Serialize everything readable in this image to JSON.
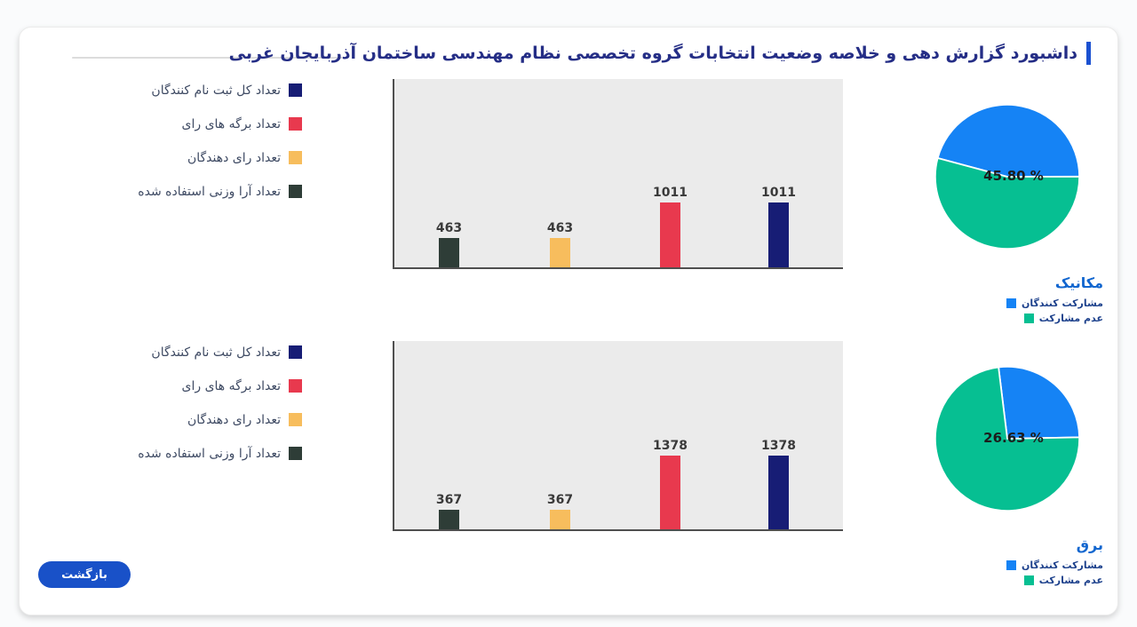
{
  "header": {
    "title": "داشبورد گزارش دهی و خلاصه وضعیت انتخابات گروه تخصصی نظام مهندسی ساختمان آذربایجان غربی",
    "accent_color": "#1b51d1"
  },
  "back_button": {
    "label": "بازگشت",
    "color": "#1951c8"
  },
  "rows": [
    {
      "legend": [
        {
          "label": "تعداد کل ثبت نام کنندگان",
          "color": "#171d75"
        },
        {
          "label": "تعداد برگه های رای",
          "color": "#e8394e"
        },
        {
          "label": "تعداد رای دهندگان",
          "color": "#f7bd5d"
        },
        {
          "label": "تعداد آرا وزنی استفاده شده",
          "color": "#2e3d37"
        }
      ],
      "bar_chart": {
        "ymax": 2950,
        "bars": [
          {
            "series": "تعداد آرا وزنی استفاده شده",
            "value": 463,
            "color": "#2e3d37"
          },
          {
            "series": "تعداد رای دهندگان",
            "value": 463,
            "color": "#f7bd5d"
          },
          {
            "series": "تعداد برگه های رای",
            "value": 1011,
            "color": "#e8394e"
          },
          {
            "series": "تعداد کل ثبت نام کنندگان",
            "value": 1011,
            "color": "#171d75"
          }
        ]
      },
      "pie": {
        "title": "مکانیک",
        "percent": 45.8,
        "percent_label": "45.80 %",
        "start_deg": 285,
        "slices": [
          {
            "label": "مشارکت کنندگان",
            "color": "#1583f5"
          },
          {
            "label": "عدم مشارکت",
            "color": "#06bf92"
          }
        ]
      }
    },
    {
      "legend": [
        {
          "label": "تعداد کل ثبت نام کنندگان",
          "color": "#171d75"
        },
        {
          "label": "تعداد برگه های رای",
          "color": "#e8394e"
        },
        {
          "label": "تعداد رای دهندگان",
          "color": "#f7bd5d"
        },
        {
          "label": "تعداد آرا وزنی استفاده شده",
          "color": "#2e3d37"
        }
      ],
      "bar_chart": {
        "ymax": 3530,
        "bars": [
          {
            "series": "تعداد آرا وزنی استفاده شده",
            "value": 367,
            "color": "#2e3d37"
          },
          {
            "series": "تعداد رای دهندگان",
            "value": 367,
            "color": "#f7bd5d"
          },
          {
            "series": "تعداد برگه های رای",
            "value": 1378,
            "color": "#e8394e"
          },
          {
            "series": "تعداد کل ثبت نام کنندگان",
            "value": 1378,
            "color": "#171d75"
          }
        ]
      },
      "pie": {
        "title": "برق",
        "percent": 26.63,
        "percent_label": "26.63 %",
        "start_deg": -7,
        "slices": [
          {
            "label": "مشارکت کنندگان",
            "color": "#1583f5"
          },
          {
            "label": "عدم مشارکت",
            "color": "#06bf92"
          }
        ]
      }
    }
  ],
  "chart_data": [
    {
      "type": "bar",
      "group": "مکانیک",
      "categories": [
        "تعداد آرا وزنی استفاده شده",
        "تعداد رای دهندگان",
        "تعداد برگه های رای",
        "تعداد کل ثبت نام کنندگان"
      ],
      "values": [
        463,
        463,
        1011,
        1011
      ],
      "colors": [
        "#2e3d37",
        "#f7bd5d",
        "#e8394e",
        "#171d75"
      ],
      "ylim": [
        0,
        2950
      ],
      "grid": false,
      "data_labels": true
    },
    {
      "type": "bar",
      "group": "برق",
      "categories": [
        "تعداد آرا وزنی استفاده شده",
        "تعداد رای دهندگان",
        "تعداد برگه های رای",
        "تعداد کل ثبت نام کنندگان"
      ],
      "values": [
        367,
        367,
        1378,
        1378
      ],
      "colors": [
        "#2e3d37",
        "#f7bd5d",
        "#e8394e",
        "#171d75"
      ],
      "ylim": [
        0,
        3530
      ],
      "grid": false,
      "data_labels": true
    },
    {
      "type": "pie",
      "title": "مکانیک",
      "labels": [
        "مشارکت کنندگان",
        "عدم مشارکت"
      ],
      "values_percent": [
        45.8,
        54.2
      ],
      "colors": [
        "#1583f5",
        "#06bf92"
      ],
      "center_label": "45.80 %",
      "legend_position": "bottom-right"
    },
    {
      "type": "pie",
      "title": "برق",
      "labels": [
        "مشارکت کنندگان",
        "عدم مشارکت"
      ],
      "values_percent": [
        26.63,
        73.37
      ],
      "colors": [
        "#1583f5",
        "#06bf92"
      ],
      "center_label": "26.63 %",
      "legend_position": "bottom-right"
    }
  ]
}
